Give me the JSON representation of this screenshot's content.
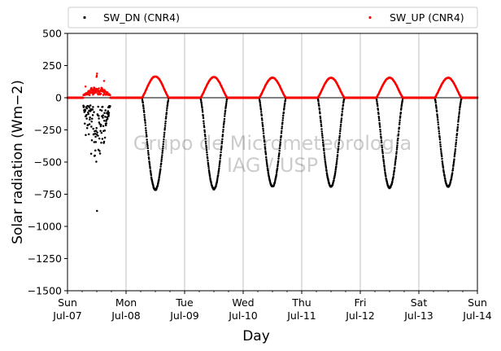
{
  "chart_data": {
    "type": "scatter",
    "xlabel": "Day",
    "ylabel": "Solar radiation (Wm−2)",
    "ylim": [
      -1500,
      500
    ],
    "x_ticks": [
      {
        "day": 0,
        "weekday": "Sun",
        "date": "Jul-07"
      },
      {
        "day": 1,
        "weekday": "Mon",
        "date": "Jul-08"
      },
      {
        "day": 2,
        "weekday": "Tue",
        "date": "Jul-09"
      },
      {
        "day": 3,
        "weekday": "Wed",
        "date": "Jul-10"
      },
      {
        "day": 4,
        "weekday": "Thu",
        "date": "Jul-11"
      },
      {
        "day": 5,
        "weekday": "Fri",
        "date": "Jul-12"
      },
      {
        "day": 6,
        "weekday": "Sat",
        "date": "Jul-13"
      },
      {
        "day": 7,
        "weekday": "Sun",
        "date": "Jul-14"
      }
    ],
    "y_ticks": [
      500,
      250,
      0,
      -250,
      -500,
      -750,
      -1000,
      -1250,
      -1500
    ],
    "grid": "vertical",
    "zero_line": true,
    "legend": {
      "placement": "top, outside axes",
      "columns": 2
    },
    "watermark": [
      "Grupo de Micrometeorologia",
      "IAG / USP"
    ],
    "series": [
      {
        "name": "SW_DN (CNR4)",
        "color": "#000000",
        "daily_min": [
          -880,
          -715,
          -710,
          -690,
          -690,
          -700,
          -690
        ],
        "day0_cloudy": true
      },
      {
        "name": "SW_UP (CNR4)",
        "color": "#ff0000",
        "daily_max": [
          200,
          165,
          160,
          155,
          155,
          155,
          155
        ],
        "day0_cloudy": true
      }
    ]
  }
}
